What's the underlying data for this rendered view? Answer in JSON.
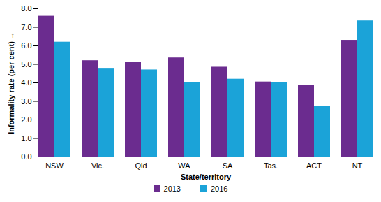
{
  "chart_data": {
    "type": "bar",
    "categories": [
      "NSW",
      "Vic.",
      "Qld",
      "WA",
      "SA",
      "Tas.",
      "ACT",
      "NT"
    ],
    "series": [
      {
        "name": "2013",
        "color": "#6b2c8f",
        "values": [
          7.6,
          5.2,
          5.1,
          5.35,
          4.85,
          4.05,
          3.85,
          6.3
        ]
      },
      {
        "name": "2016",
        "color": "#1ba3d8",
        "values": [
          6.2,
          4.75,
          4.7,
          4.0,
          4.2,
          4.0,
          2.75,
          7.35
        ]
      }
    ],
    "x_label": "State/territory",
    "y_label": "Informality rate (per cent)",
    "ylim": [
      0,
      8
    ],
    "yticks": [
      {
        "value": 0,
        "label": "0.0"
      },
      {
        "value": 1,
        "label": "1.0"
      },
      {
        "value": 2,
        "label": "2.0"
      },
      {
        "value": 3,
        "label": "3.0"
      },
      {
        "value": 4,
        "label": "4.0"
      },
      {
        "value": 5,
        "label": "5.0"
      },
      {
        "value": 6,
        "label": "6.0"
      },
      {
        "value": 7,
        "label": "7.0"
      },
      {
        "value": 8,
        "label": "8.0"
      }
    ],
    "grid": false,
    "legend": "bottom"
  }
}
